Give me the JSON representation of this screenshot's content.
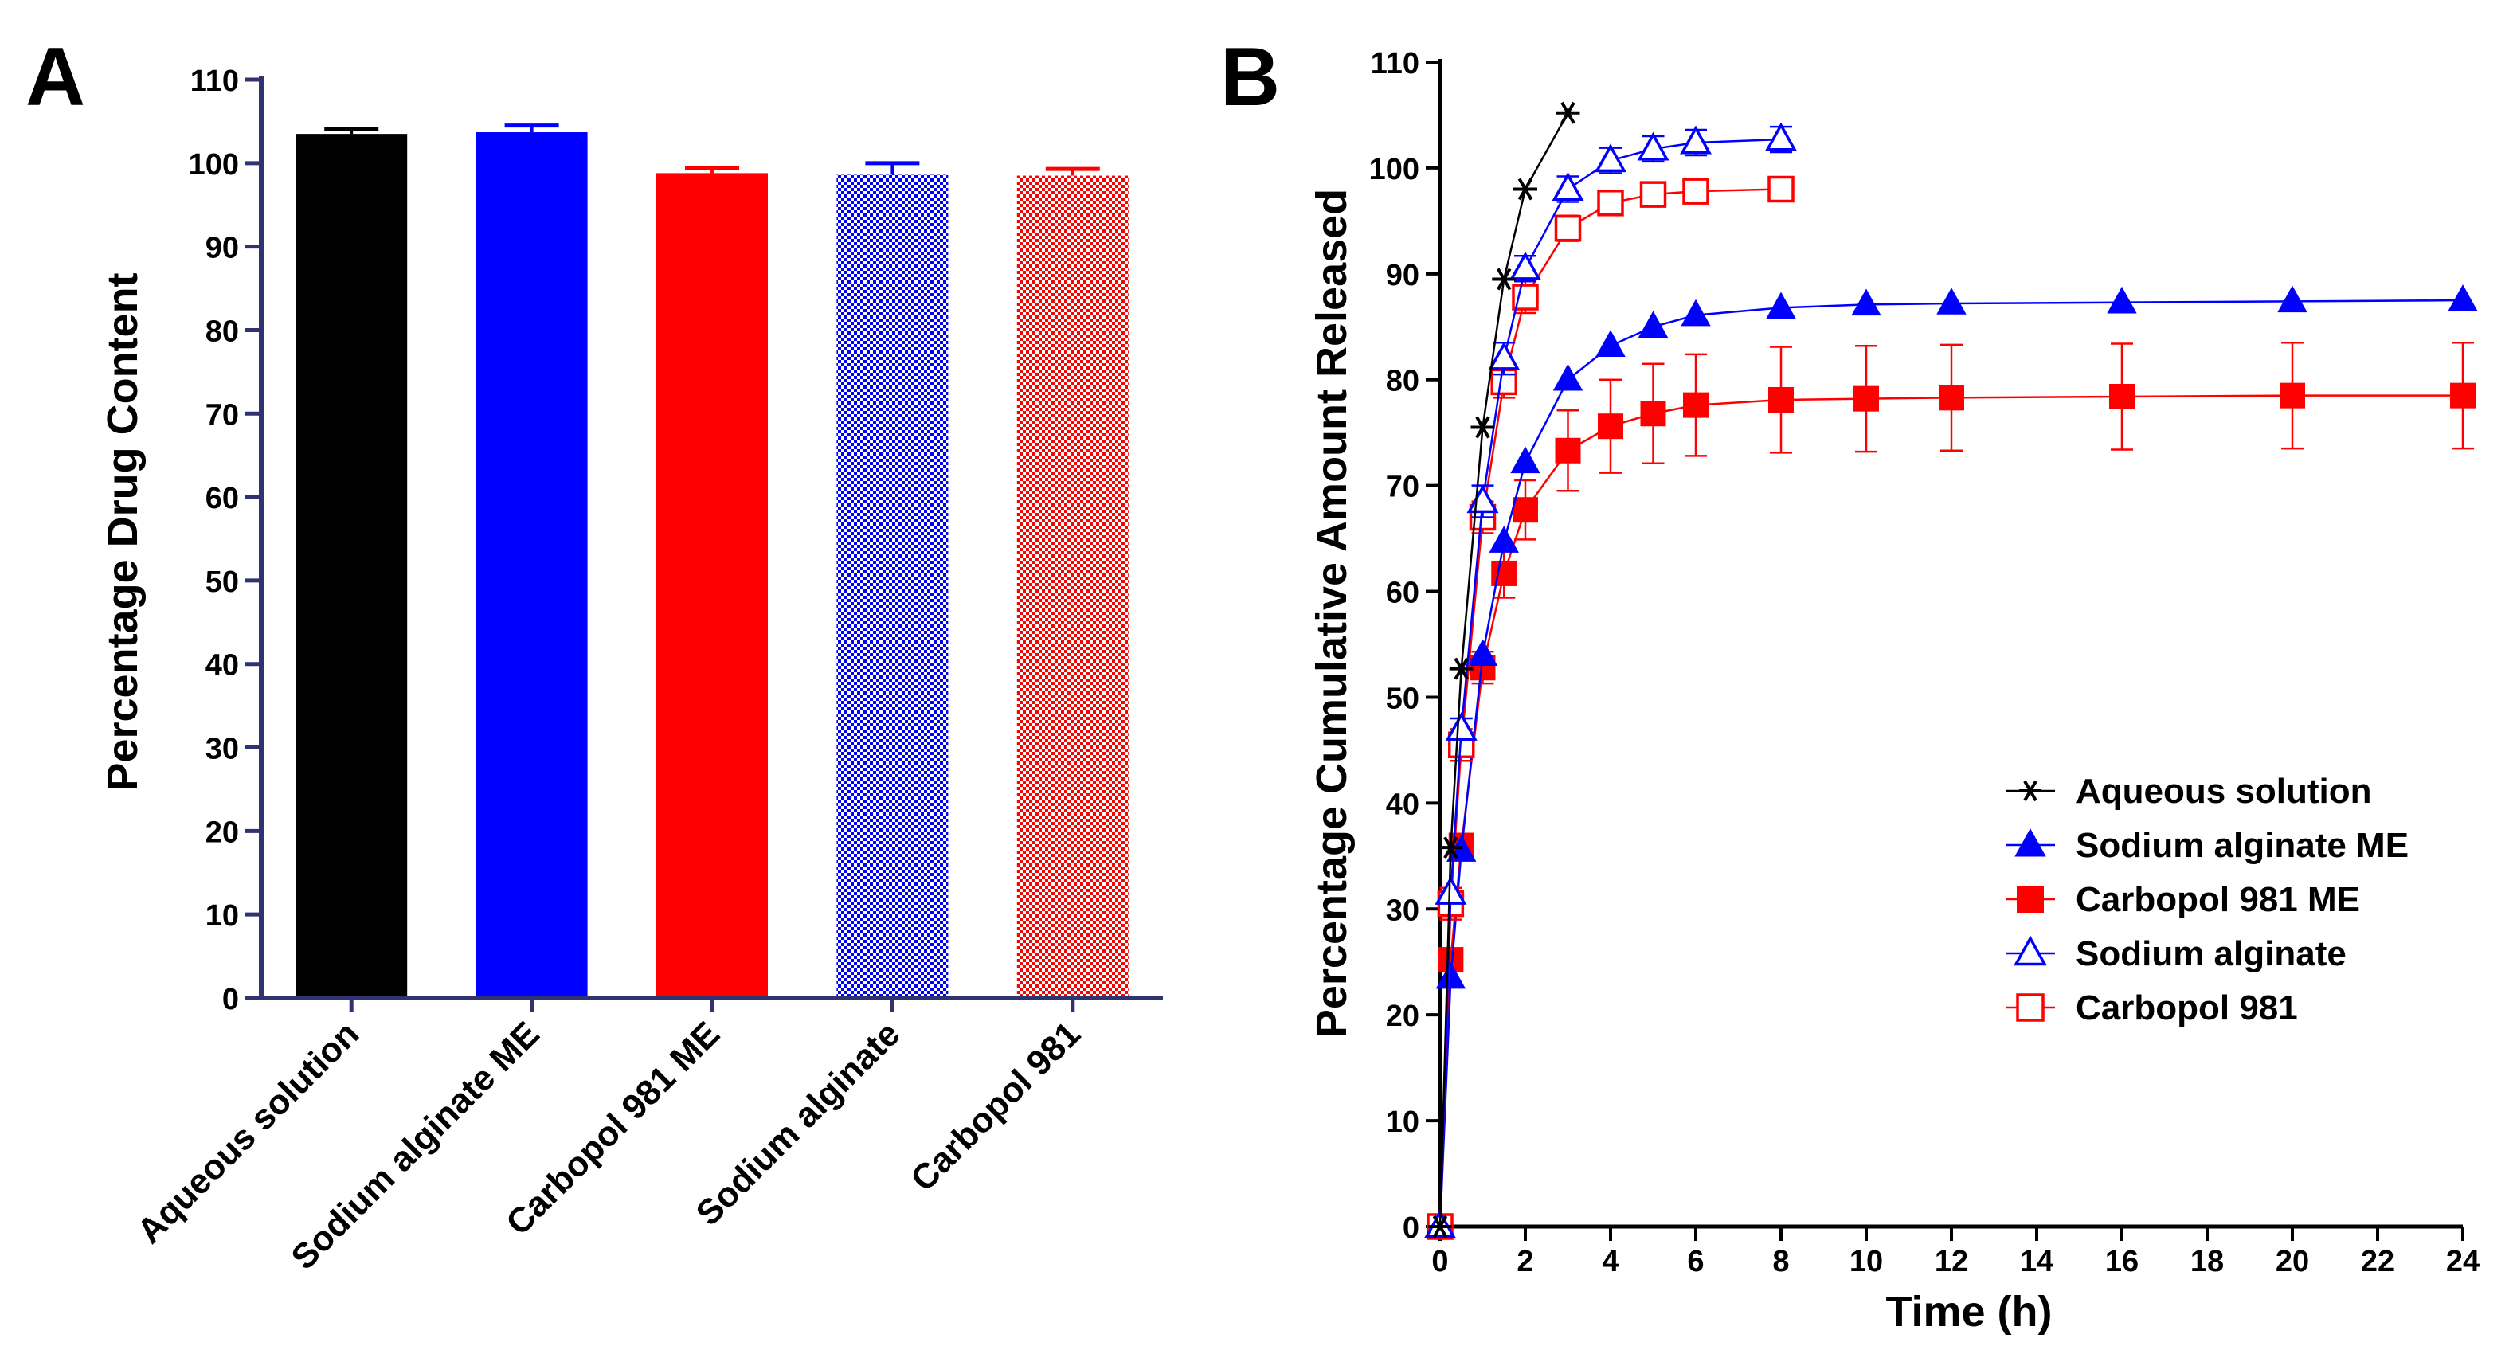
{
  "panels": {
    "a": "A",
    "b": "B"
  },
  "chart_data": [
    {
      "type": "bar",
      "title": "",
      "xlabel": "",
      "ylabel": "Percentage Drug Content",
      "ylim": [
        0,
        110
      ],
      "yticks": [
        0,
        10,
        20,
        30,
        40,
        50,
        60,
        70,
        80,
        90,
        100,
        110
      ],
      "categories": [
        "Aqueous solution",
        "Sodium alginate ME",
        "Carbopol 981 ME",
        "Sodium alginate",
        "Carbopol 981"
      ],
      "values": [
        103.5,
        103.7,
        98.8,
        98.6,
        98.5
      ],
      "errors": [
        0.6,
        0.8,
        0.6,
        1.4,
        0.8
      ],
      "colors": [
        "#000000",
        "#0000ff",
        "#ff0000",
        "#0000ff",
        "#ff0000"
      ],
      "patterns": [
        "solid",
        "solid",
        "solid",
        "checker",
        "checker"
      ]
    },
    {
      "type": "line",
      "title": "",
      "xlabel": "Time (h)",
      "ylabel": "Percentage Cumulative Amount Released",
      "xlim": [
        0,
        24
      ],
      "ylim": [
        0,
        110
      ],
      "xticks": [
        0,
        2,
        4,
        6,
        8,
        10,
        12,
        14,
        16,
        18,
        20,
        22,
        24
      ],
      "yticks": [
        0,
        10,
        20,
        30,
        40,
        50,
        60,
        70,
        80,
        90,
        100,
        110
      ],
      "legend_position": "center-right",
      "series": [
        {
          "name": "Aqueous solution",
          "color": "#000000",
          "marker": "star",
          "x": [
            0,
            0.25,
            0.5,
            1,
            1.5,
            2,
            3
          ],
          "y": [
            0,
            35.8,
            52.7,
            75.5,
            89.5,
            98,
            105.2
          ],
          "err": [
            0,
            0,
            0,
            0,
            0,
            0,
            0
          ]
        },
        {
          "name": "Sodium alginate ME",
          "color": "#0000ff",
          "marker": "triangle-filled",
          "x": [
            0,
            0.25,
            0.5,
            1,
            1.5,
            2,
            3,
            4,
            5,
            6,
            8,
            10,
            12,
            16,
            20,
            24
          ],
          "y": [
            0,
            23.5,
            35.5,
            54,
            64.7,
            72.2,
            80,
            83.2,
            85,
            86.1,
            86.8,
            87.1,
            87.2,
            87.3,
            87.4,
            87.5
          ],
          "err": [
            0,
            0,
            0,
            0,
            0,
            0,
            0,
            0,
            0,
            0,
            0,
            0,
            0,
            0,
            0,
            0
          ]
        },
        {
          "name": "Carbopol 981 ME",
          "color": "#ff0000",
          "marker": "square-filled",
          "x": [
            0,
            0.25,
            0.5,
            1,
            1.5,
            2,
            3,
            4,
            5,
            6,
            8,
            10,
            12,
            16,
            20,
            24
          ],
          "y": [
            0,
            25.2,
            36,
            52.8,
            61.7,
            67.7,
            73.3,
            75.6,
            76.8,
            77.6,
            78.1,
            78.2,
            78.3,
            78.4,
            78.5,
            78.5
          ],
          "err": [
            0,
            0,
            1,
            1.5,
            2.3,
            2.8,
            3.8,
            4.4,
            4.7,
            4.8,
            5,
            5,
            5,
            5,
            5,
            5
          ]
        },
        {
          "name": "Sodium alginate",
          "color": "#0000ff",
          "marker": "triangle-open",
          "x": [
            0,
            0.25,
            0.5,
            1,
            1.5,
            2,
            3,
            4,
            5,
            6,
            8
          ],
          "y": [
            0,
            31.5,
            47,
            68.5,
            82,
            90.5,
            98,
            100.7,
            101.8,
            102.4,
            102.7
          ],
          "err": [
            0,
            0,
            1,
            1.5,
            1.5,
            1.2,
            1.2,
            1.2,
            1.2,
            1.2,
            1.2
          ]
        },
        {
          "name": "Carbopol 981",
          "color": "#ff0000",
          "marker": "square-open",
          "x": [
            0,
            0.25,
            0.5,
            1,
            1.5,
            2,
            3,
            4,
            5,
            6,
            8
          ],
          "y": [
            0,
            30.5,
            45.5,
            67,
            79.8,
            87.8,
            94.3,
            96.7,
            97.5,
            97.8,
            98
          ],
          "err": [
            0,
            1.5,
            1.5,
            1.5,
            1.5,
            1.5,
            1.2,
            1,
            1,
            1,
            1
          ]
        }
      ]
    }
  ]
}
